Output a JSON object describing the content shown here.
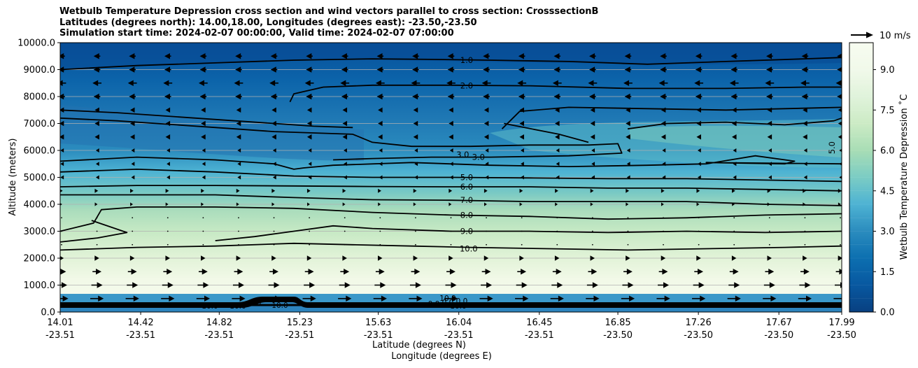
{
  "chart_data": {
    "type": "contourf",
    "title_lines": [
      "Wetbulb Temperature Depression cross section and wind vectors parallel to cross section: CrosssectionB",
      "Latitudes (degrees north): 14.00,18.00, Longitudes (degrees east): -23.50,-23.50",
      "Simulation start time: 2024-02-07 00:00:00, Valid time: 2024-02-07 07:00:00"
    ],
    "ylabel": "Altitude (meters)",
    "xlabel_lat": "Latitude (degrees N)",
    "xlabel_lon": "Longitude (degrees E)",
    "ylim": [
      0,
      10000
    ],
    "y_ticks": [
      "0.0",
      "1000.0",
      "2000.0",
      "3000.0",
      "4000.0",
      "5000.0",
      "6000.0",
      "7000.0",
      "8000.0",
      "9000.0",
      "10000.0"
    ],
    "x_ticks": [
      {
        "lat": "14.01",
        "lon": "-23.51"
      },
      {
        "lat": "14.42",
        "lon": "-23.51"
      },
      {
        "lat": "14.82",
        "lon": "-23.51"
      },
      {
        "lat": "15.23",
        "lon": "-23.51"
      },
      {
        "lat": "15.63",
        "lon": "-23.51"
      },
      {
        "lat": "16.04",
        "lon": "-23.51"
      },
      {
        "lat": "16.45",
        "lon": "-23.51"
      },
      {
        "lat": "16.85",
        "lon": "-23.50"
      },
      {
        "lat": "17.26",
        "lon": "-23.50"
      },
      {
        "lat": "17.67",
        "lon": "-23.50"
      },
      {
        "lat": "17.99",
        "lon": "-23.50"
      }
    ],
    "grid": true,
    "colorbar": {
      "label": "Wetbulb Temperature Depression ˚C",
      "range": [
        0,
        10
      ],
      "ticks": [
        "0.0",
        "1.5",
        "3.0",
        "4.5",
        "6.0",
        "7.5",
        "9.0"
      ],
      "colormap": "GnBu_r",
      "low_color": "#08479a",
      "high_color": "#f6fbee"
    },
    "contour_labels": [
      {
        "value": "1.0",
        "lat": 16.08,
        "alt": 9350
      },
      {
        "value": "2.0",
        "lat": 16.08,
        "alt": 8400
      },
      {
        "value": "3.0",
        "lat": 16.06,
        "alt": 5850
      },
      {
        "value": "3.0",
        "lat": 16.14,
        "alt": 5750
      },
      {
        "value": "5.0",
        "lat": 16.08,
        "alt": 5000
      },
      {
        "value": "6.0",
        "lat": 16.08,
        "alt": 4650
      },
      {
        "value": "7.0",
        "lat": 16.08,
        "alt": 4150
      },
      {
        "value": "8.0",
        "lat": 16.08,
        "alt": 3600
      },
      {
        "value": "9.0",
        "lat": 16.08,
        "alt": 3000
      },
      {
        "value": "10.0",
        "lat": 16.09,
        "alt": 2350
      },
      {
        "value": "5.0",
        "lat": 17.94,
        "alt": 6100
      }
    ],
    "contours": [
      {
        "level": 1.0,
        "points": [
          [
            14.01,
            9000
          ],
          [
            14.4,
            9150
          ],
          [
            14.8,
            9250
          ],
          [
            15.2,
            9350
          ],
          [
            15.6,
            9400
          ],
          [
            15.9,
            9380
          ],
          [
            16.2,
            9350
          ],
          [
            16.6,
            9300
          ],
          [
            17.0,
            9200
          ],
          [
            17.4,
            9300
          ],
          [
            17.8,
            9400
          ],
          [
            17.99,
            9450
          ]
        ]
      },
      {
        "level": 2.0,
        "points": [
          [
            15.18,
            7800
          ],
          [
            15.2,
            8100
          ],
          [
            15.35,
            8350
          ],
          [
            15.6,
            8420
          ],
          [
            16.0,
            8420
          ],
          [
            16.4,
            8400
          ],
          [
            16.9,
            8300
          ],
          [
            17.4,
            8300
          ],
          [
            17.8,
            8350
          ],
          [
            17.99,
            8350
          ]
        ]
      },
      {
        "level": 2.0,
        "points": [
          [
            16.26,
            6800
          ],
          [
            16.35,
            7450
          ],
          [
            16.6,
            7600
          ],
          [
            17.0,
            7550
          ],
          [
            17.4,
            7500
          ],
          [
            17.99,
            7600
          ]
        ]
      },
      {
        "level": 2.0,
        "points": [
          [
            14.01,
            7500
          ],
          [
            14.3,
            7400
          ],
          [
            14.6,
            7250
          ],
          [
            14.9,
            7100
          ],
          [
            15.1,
            7000
          ],
          [
            15.3,
            6900
          ],
          [
            15.5,
            6850
          ]
        ]
      },
      {
        "level": 3.0,
        "points": [
          [
            14.01,
            7200
          ],
          [
            14.3,
            7100
          ],
          [
            14.6,
            6950
          ],
          [
            14.9,
            6800
          ],
          [
            15.1,
            6700
          ],
          [
            15.3,
            6650
          ],
          [
            15.5,
            6600
          ],
          [
            15.6,
            6300
          ],
          [
            15.8,
            6150
          ],
          [
            16.1,
            6150
          ],
          [
            16.4,
            6200
          ],
          [
            16.7,
            6200
          ],
          [
            16.85,
            6250
          ],
          [
            16.87,
            5900
          ],
          [
            16.6,
            5800
          ],
          [
            16.2,
            5750
          ],
          [
            15.9,
            5750
          ],
          [
            15.6,
            5700
          ],
          [
            15.4,
            5650
          ]
        ]
      },
      {
        "level": 3.0,
        "points": [
          [
            14.01,
            5600
          ],
          [
            14.4,
            5750
          ],
          [
            14.8,
            5650
          ],
          [
            15.1,
            5500
          ],
          [
            15.2,
            5300
          ],
          [
            15.25,
            5350
          ],
          [
            15.4,
            5450
          ],
          [
            15.8,
            5550
          ],
          [
            16.2,
            5450
          ],
          [
            16.6,
            5400
          ],
          [
            17.0,
            5450
          ],
          [
            17.3,
            5500
          ],
          [
            17.55,
            5800
          ],
          [
            17.75,
            5600
          ],
          [
            17.7,
            5500
          ],
          [
            17.3,
            5550
          ],
          [
            17.99,
            5500
          ]
        ]
      },
      {
        "level": 3.0,
        "points": [
          [
            16.9,
            6800
          ],
          [
            17.1,
            7000
          ],
          [
            17.4,
            7050
          ],
          [
            17.7,
            6950
          ],
          [
            17.95,
            7100
          ],
          [
            17.99,
            7200
          ]
        ]
      },
      {
        "level": 3.0,
        "points": [
          [
            16.27,
            7000
          ],
          [
            16.55,
            6600
          ],
          [
            16.7,
            6300
          ]
        ]
      },
      {
        "level": 5.0,
        "points": [
          [
            14.01,
            5200
          ],
          [
            14.4,
            5300
          ],
          [
            14.8,
            5200
          ],
          [
            15.2,
            5050
          ],
          [
            15.6,
            5000
          ],
          [
            16.0,
            5000
          ],
          [
            16.4,
            4980
          ],
          [
            16.8,
            4950
          ],
          [
            17.2,
            4950
          ],
          [
            17.6,
            4900
          ],
          [
            17.99,
            4850
          ]
        ]
      },
      {
        "level": 6.0,
        "points": [
          [
            14.01,
            4650
          ],
          [
            14.4,
            4700
          ],
          [
            14.8,
            4700
          ],
          [
            15.2,
            4680
          ],
          [
            15.6,
            4660
          ],
          [
            16.0,
            4650
          ],
          [
            16.4,
            4650
          ],
          [
            16.8,
            4600
          ],
          [
            17.2,
            4600
          ],
          [
            17.6,
            4550
          ],
          [
            17.99,
            4500
          ]
        ]
      },
      {
        "level": 7.0,
        "points": [
          [
            14.01,
            4350
          ],
          [
            14.4,
            4350
          ],
          [
            14.8,
            4350
          ],
          [
            15.2,
            4250
          ],
          [
            15.6,
            4170
          ],
          [
            16.0,
            4150
          ],
          [
            16.4,
            4100
          ],
          [
            16.8,
            4100
          ],
          [
            17.2,
            4100
          ],
          [
            17.6,
            4000
          ],
          [
            17.99,
            3950
          ]
        ]
      },
      {
        "level": 8.0,
        "points": [
          [
            14.01,
            3000
          ],
          [
            14.18,
            3300
          ],
          [
            14.22,
            3800
          ],
          [
            14.4,
            3900
          ],
          [
            14.8,
            3900
          ],
          [
            15.2,
            3850
          ],
          [
            15.6,
            3700
          ],
          [
            16.0,
            3600
          ],
          [
            16.4,
            3550
          ],
          [
            16.8,
            3450
          ],
          [
            17.2,
            3500
          ],
          [
            17.6,
            3600
          ],
          [
            17.99,
            3650
          ]
        ]
      },
      {
        "level": 9.0,
        "points": [
          [
            14.01,
            2600
          ],
          [
            14.2,
            2750
          ],
          [
            14.35,
            2950
          ],
          [
            14.17,
            3400
          ]
        ]
      },
      {
        "level": 9.0,
        "points": [
          [
            14.8,
            2650
          ],
          [
            15.0,
            2800
          ],
          [
            15.2,
            3000
          ],
          [
            15.4,
            3200
          ],
          [
            15.6,
            3100
          ],
          [
            16.0,
            3000
          ],
          [
            16.4,
            3000
          ],
          [
            16.8,
            2950
          ],
          [
            17.2,
            3000
          ],
          [
            17.6,
            2950
          ],
          [
            17.99,
            3000
          ]
        ]
      },
      {
        "level": 10.0,
        "points": [
          [
            14.01,
            2300
          ],
          [
            14.4,
            2400
          ],
          [
            14.8,
            2450
          ],
          [
            15.2,
            2550
          ],
          [
            15.5,
            2500
          ],
          [
            15.8,
            2450
          ],
          [
            16.1,
            2400
          ],
          [
            16.5,
            2350
          ],
          [
            16.9,
            2300
          ],
          [
            17.3,
            2350
          ],
          [
            17.7,
            2400
          ],
          [
            17.99,
            2450
          ]
        ]
      }
    ],
    "surface_contour_labels": [
      "10.0",
      "10.0",
      "0.0",
      "10.0",
      "0.0",
      "10.0",
      "0.0",
      "10.0",
      "0.0"
    ],
    "quiver_key": {
      "label": "10 m/s",
      "magnitude": 10
    },
    "wind_rows": [
      {
        "alt": 9500,
        "u": -3
      },
      {
        "alt": 9000,
        "u": -3
      },
      {
        "alt": 8500,
        "u": -4
      },
      {
        "alt": 8000,
        "u": -3
      },
      {
        "alt": 7500,
        "u": -2
      },
      {
        "alt": 7000,
        "u": -2
      },
      {
        "alt": 6500,
        "u": -2
      },
      {
        "alt": 6000,
        "u": -1
      },
      {
        "alt": 5500,
        "u": -1
      },
      {
        "alt": 5000,
        "u": -1
      },
      {
        "alt": 4500,
        "u": 1
      },
      {
        "alt": 4000,
        "u": 0.5
      },
      {
        "alt": 3500,
        "u": 0.2
      },
      {
        "alt": 3000,
        "u": 0.2
      },
      {
        "alt": 2500,
        "u": 0.1
      },
      {
        "alt": 2000,
        "u": 2
      },
      {
        "alt": 1500,
        "u": 4
      },
      {
        "alt": 1000,
        "u": 5
      },
      {
        "alt": 500,
        "u": 6
      }
    ]
  }
}
